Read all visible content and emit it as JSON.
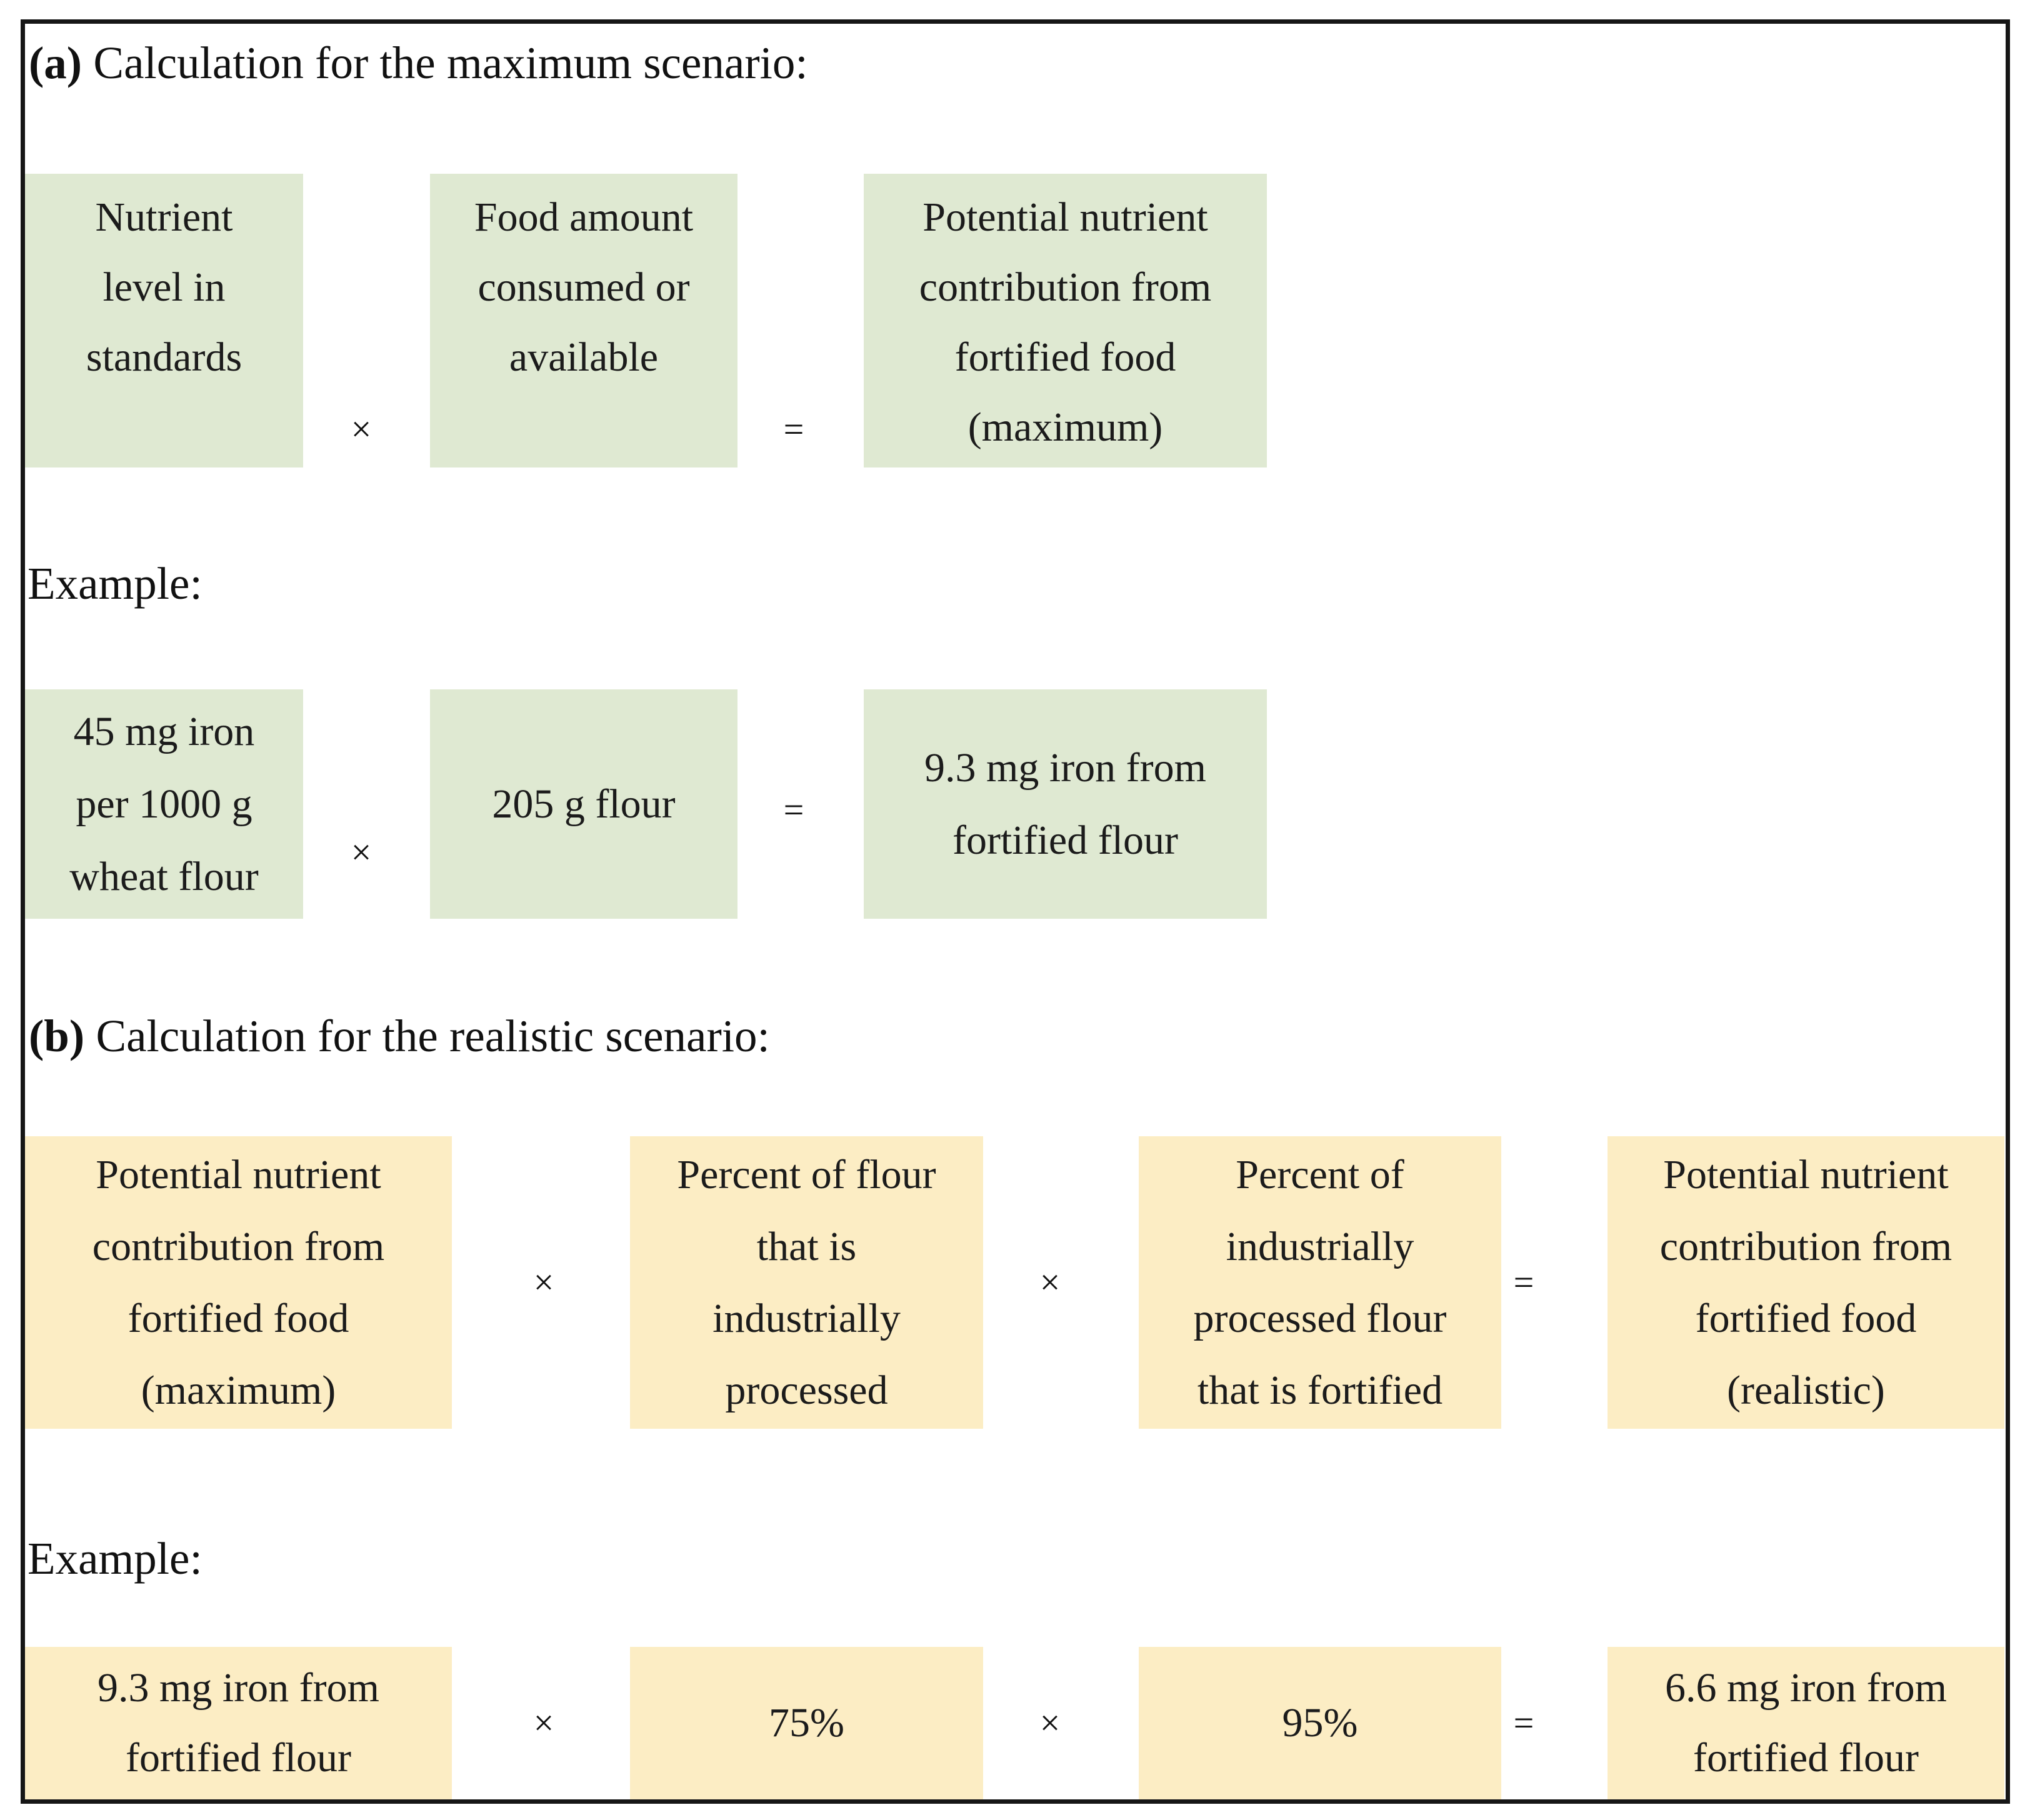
{
  "figure": {
    "colors": {
      "green": "#dfe9d2",
      "yellow": "#fcedc4",
      "frame_border": "#161616",
      "text": "#1b1b1b"
    },
    "section_a": {
      "heading_label": "(a)",
      "heading_rest": "Calculation for the maximum scenario:",
      "formula_boxes": [
        "Nutrient\nlevel in\nstandards",
        "Food amount\nconsumed or\navailable",
        "Potential nutrient\ncontribution from\nfortified food\n(maximum)"
      ],
      "formula_ops": [
        "×",
        "="
      ],
      "example_label": "Example:",
      "example_boxes": [
        "45 mg iron\nper 1000 g\nwheat flour",
        "205 g flour",
        "9.3 mg iron from\nfortified flour"
      ],
      "example_ops": [
        "×",
        "="
      ]
    },
    "section_b": {
      "heading_label": "(b)",
      "heading_rest": "Calculation for the realistic scenario:",
      "formula_boxes": [
        "Potential nutrient\ncontribution from\nfortified food\n(maximum)",
        "Percent of flour\nthat is\nindustrially\nprocessed",
        "Percent of\nindustrially\nprocessed flour\nthat is fortified",
        "Potential nutrient\ncontribution from\nfortified food\n(realistic)"
      ],
      "formula_ops": [
        "×",
        "×",
        "="
      ],
      "example_label": "Example:",
      "example_boxes": [
        "9.3 mg iron from\nfortified flour",
        "75%",
        "95%",
        "6.6 mg iron from\nfortified flour"
      ],
      "example_ops": [
        "×",
        "×",
        "="
      ]
    }
  }
}
